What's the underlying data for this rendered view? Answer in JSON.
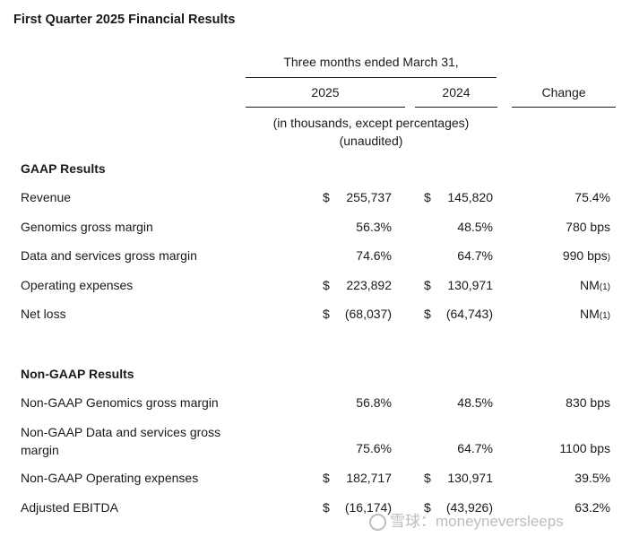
{
  "title": "First Quarter 2025 Financial Results",
  "header": {
    "period": "Three months ended March 31,",
    "col_2025": "2025",
    "col_2024": "2024",
    "col_change": "Change",
    "units_line1": "(in thousands, except percentages)",
    "units_line2": "(unaudited)"
  },
  "gaap": {
    "heading": "GAAP Results",
    "rows": [
      {
        "label": "Revenue",
        "cur_sign": "$",
        "v2025": "255,737",
        "prior_sign": "$",
        "v2024": "145,820",
        "change": "75.4%",
        "note": ""
      },
      {
        "label": "Genomics gross margin",
        "cur_sign": "",
        "v2025": "56.3%",
        "prior_sign": "",
        "v2024": "48.5%",
        "change": "780 bps",
        "note": ""
      },
      {
        "label": "Data and services gross margin",
        "cur_sign": "",
        "v2025": "74.6%",
        "prior_sign": "",
        "v2024": "64.7%",
        "change": "990 bps",
        "note": ")"
      },
      {
        "label": "Operating expenses",
        "cur_sign": "$",
        "v2025": "223,892",
        "prior_sign": "$",
        "v2024": "130,971",
        "change": "NM",
        "note": "(1)"
      },
      {
        "label": "Net loss",
        "cur_sign": "$",
        "v2025": "(68,037)",
        "prior_sign": "$",
        "v2024": "(64,743)",
        "change": "NM",
        "note": "(1)"
      }
    ]
  },
  "nongaap": {
    "heading": "Non-GAAP Results",
    "rows": [
      {
        "label": "Non-GAAP Genomics gross margin",
        "cur_sign": "",
        "v2025": "56.8%",
        "prior_sign": "",
        "v2024": "48.5%",
        "change": "830 bps",
        "note": ""
      },
      {
        "label": "Non-GAAP Data and services gross margin",
        "cur_sign": "",
        "v2025": "75.6%",
        "prior_sign": "",
        "v2024": "64.7%",
        "change": "1100 bps",
        "note": ""
      },
      {
        "label": "Non-GAAP Operating expenses",
        "cur_sign": "$",
        "v2025": "182,717",
        "prior_sign": "$",
        "v2024": "130,971",
        "change": "39.5%",
        "note": ""
      },
      {
        "label": "Adjusted EBITDA",
        "cur_sign": "$",
        "v2025": "(16,174)",
        "prior_sign": "$",
        "v2024": "(43,926)",
        "change": "63.2%",
        "note": ""
      }
    ]
  },
  "watermark": "雪球：moneyneversleeps"
}
